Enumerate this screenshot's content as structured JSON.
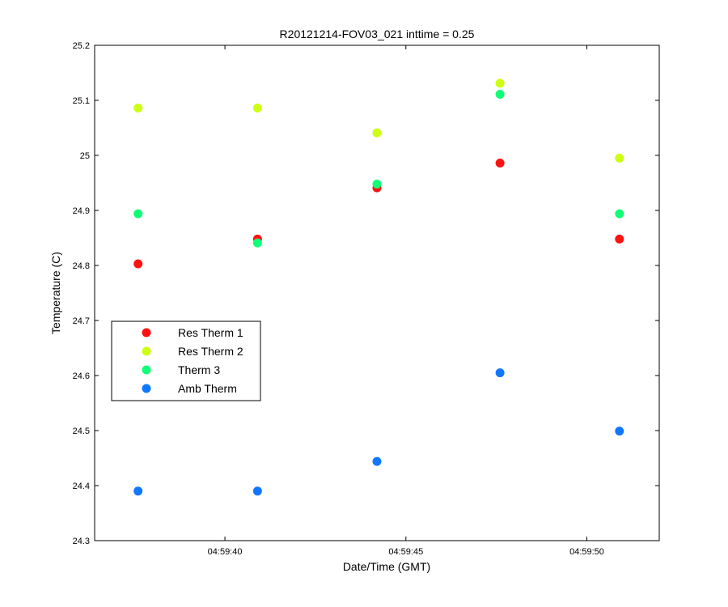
{
  "chart_data": {
    "type": "scatter",
    "title": "R20121214-FOV03_021 inttime = 0.25",
    "xlabel": "Date/Time (GMT)",
    "ylabel": "Temperature (C)",
    "x_axis_type": "time",
    "xlim": [
      "04:59:36.4",
      "04:59:52.0"
    ],
    "ylim": [
      24.3,
      25.2
    ],
    "x_ticks": [
      "04:59:40",
      "04:59:45",
      "04:59:50"
    ],
    "y_ticks": [
      "24.3",
      "24.4",
      "24.5",
      "24.6",
      "24.7",
      "24.8",
      "24.9",
      "25",
      "25.1",
      "25.2"
    ],
    "grid": false,
    "legend_position": "middle-left",
    "x": [
      "04:59:37.6",
      "04:59:40.9",
      "04:59:44.2",
      "04:59:47.6",
      "04:59:50.9"
    ],
    "series": [
      {
        "name": "Res Therm 1",
        "color": "#ff1111",
        "values": [
          24.803,
          24.848,
          24.941,
          24.986,
          24.848
        ]
      },
      {
        "name": "Res Therm 2",
        "color": "#ccff11",
        "values": [
          25.086,
          25.086,
          25.041,
          25.131,
          24.995
        ]
      },
      {
        "name": "Therm 3",
        "color": "#11ff77",
        "values": [
          24.894,
          24.841,
          24.948,
          25.111,
          24.894
        ]
      },
      {
        "name": "Amb Therm",
        "color": "#1177ff",
        "values": [
          24.39,
          24.39,
          24.444,
          24.605,
          24.499
        ]
      }
    ]
  }
}
